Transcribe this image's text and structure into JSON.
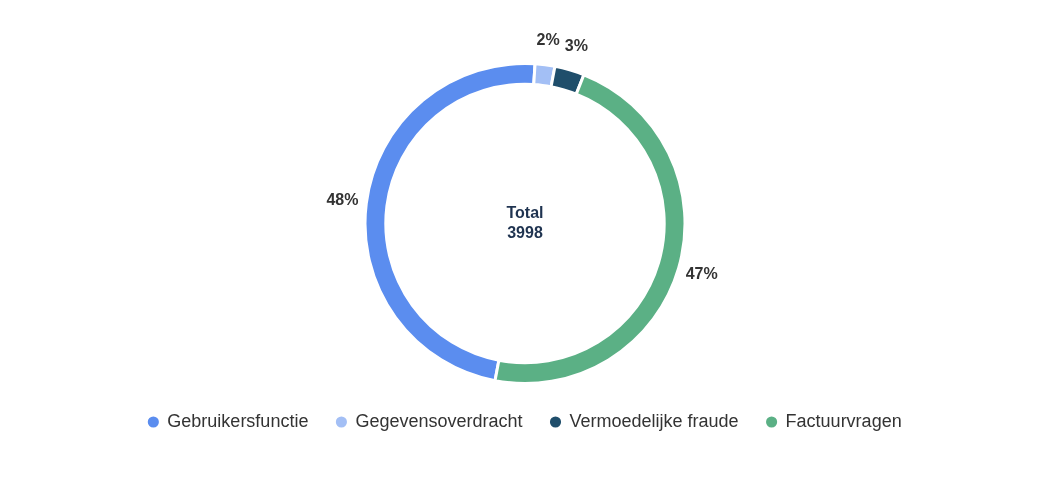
{
  "chart_data": {
    "type": "donut",
    "categories": [
      "Gebruikersfunctie",
      "Gegevensoverdracht",
      "Vermoedelijke fraude",
      "Factuurvragen"
    ],
    "values": [
      48,
      2,
      3,
      47
    ],
    "colors": [
      "#5b8def",
      "#a3bff5",
      "#1f4e6b",
      "#5bb085"
    ],
    "value_labels": [
      "48%",
      "2%",
      "3%",
      "47%"
    ],
    "annotations": [
      "Total",
      "3998"
    ],
    "legend": "bottom"
  }
}
